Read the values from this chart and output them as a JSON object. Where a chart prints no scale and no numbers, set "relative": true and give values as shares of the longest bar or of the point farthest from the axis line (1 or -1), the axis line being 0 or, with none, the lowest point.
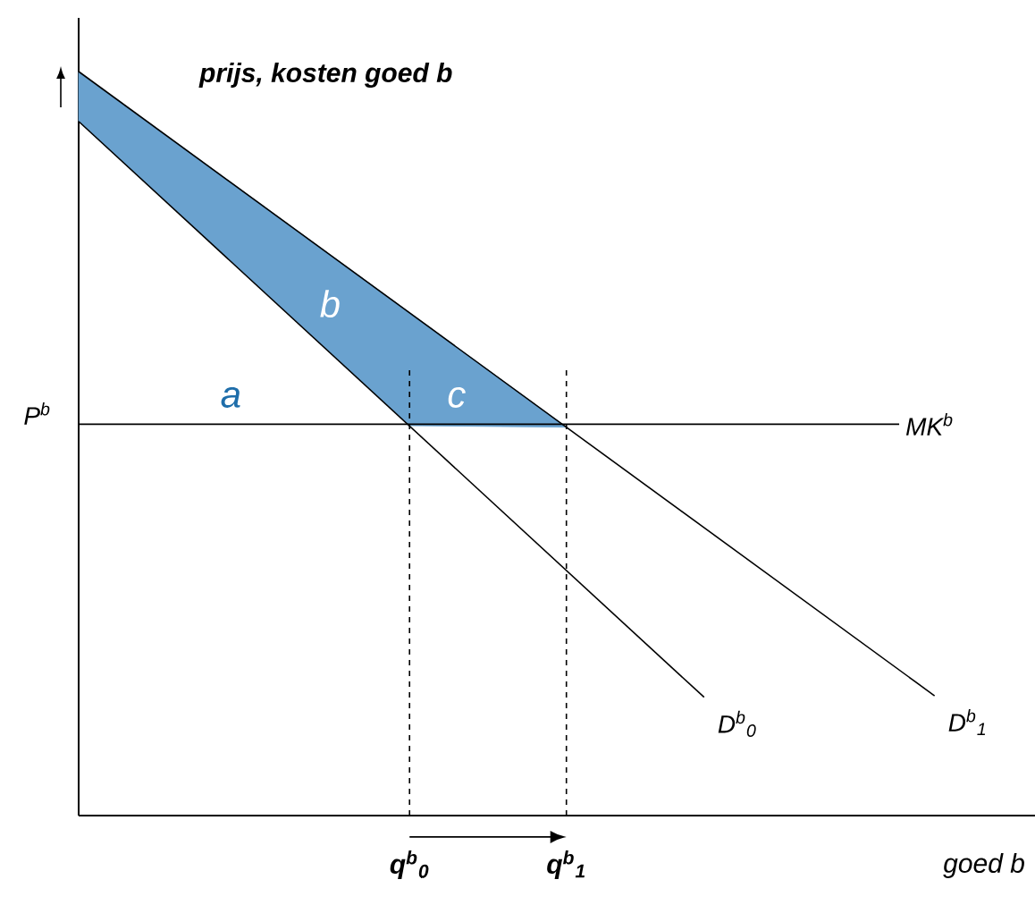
{
  "chart_data": {
    "type": "line",
    "relative": true,
    "ylabel": "prijs, kosten goed b",
    "xlabel": "goed b",
    "xlim": [
      0,
      1
    ],
    "xticks": [
      {
        "value": 0.346,
        "label": "q$^{b}$$_{0}$"
      },
      {
        "value": 0.51,
        "label": "q$^{b}$$_{1}$"
      }
    ],
    "series": [
      {
        "type": "area",
        "color": "#6aa2cf",
        "x": [
          0,
          0.346,
          0.51,
          0.346,
          0
        ],
        "values": [
          1,
          0.676,
          0.522,
          0.524,
          0.933
        ]
      },
      {
        "name": "MK$^{b}$",
        "color": "#000000",
        "x": [
          0,
          0.858
        ],
        "values": [
          0.526,
          0.526
        ]
      },
      {
        "name": "D$^{b}$$_{0}$",
        "color": "#000000",
        "x": [
          0,
          0.654
        ],
        "values": [
          0.933,
          0.159
        ]
      },
      {
        "name": "D$^{b}$$_{1}$",
        "color": "#000000",
        "x": [
          0,
          0.895
        ],
        "values": [
          1,
          0.161
        ]
      }
    ],
    "ref_lines": [
      {
        "axis": "x",
        "value": 0.346,
        "line_style": "dashed"
      },
      {
        "axis": "x",
        "value": 0.51,
        "line_style": "dashed"
      }
    ],
    "annotations": [
      {
        "text": "P$^{b}$",
        "x": 0,
        "y": 0.526
      },
      "a",
      "b",
      "c"
    ],
    "legend": false,
    "grid": false,
    "marker": "none"
  }
}
